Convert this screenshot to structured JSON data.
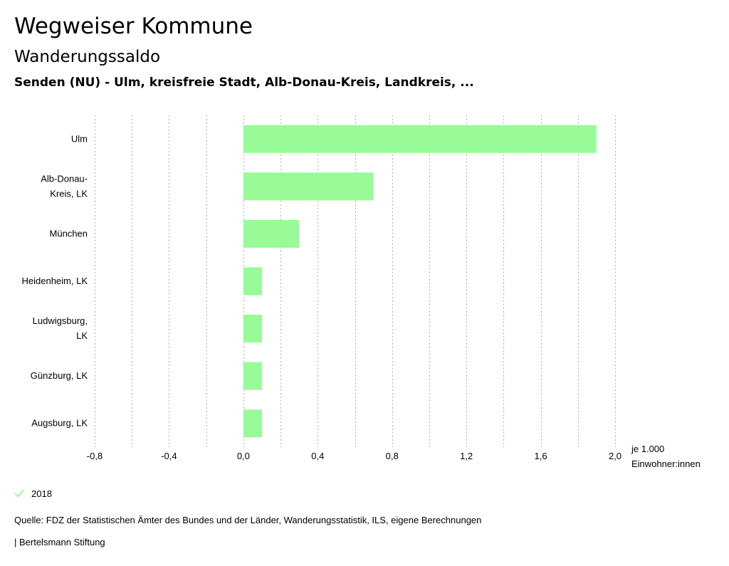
{
  "header": {
    "title": "Wegweiser Kommune",
    "subtitle": "Wanderungssaldo",
    "region": "Senden (NU) - Ulm, kreisfreie Stadt, Alb-Donau-Kreis, Landkreis, ..."
  },
  "chart_data": {
    "type": "bar",
    "orientation": "horizontal",
    "categories": [
      [
        "Ulm"
      ],
      [
        "Alb-Donau-",
        "Kreis, LK"
      ],
      [
        "München"
      ],
      [
        "Heidenheim, LK"
      ],
      [
        "Ludwigsburg,",
        "LK"
      ],
      [
        "Günzburg, LK"
      ],
      [
        "Augsburg, LK"
      ]
    ],
    "series": [
      {
        "name": "2018",
        "values": [
          1.9,
          0.7,
          0.3,
          0.1,
          0.1,
          0.1,
          0.1
        ]
      }
    ],
    "xlim": [
      -0.8,
      2.0
    ],
    "xticks": [
      -0.8,
      -0.4,
      0.0,
      0.4,
      0.8,
      1.2,
      1.6,
      2.0
    ],
    "xtick_labels": [
      "-0,8",
      "-0,4",
      "0,0",
      "0,4",
      "0,8",
      "1,2",
      "1,6",
      "2,0"
    ],
    "xlabel": [
      "je 1.000",
      "Einwohner:innen"
    ],
    "grid": "vertical dotted"
  },
  "legend": {
    "label": "2018",
    "icon": "check-icon"
  },
  "footer": {
    "source": "Quelle: FDZ der Statistischen Ämter des Bundes und der Länder, Wanderungsstatistik, ILS, eigene Berechnungen",
    "credit": "| Bertelsmann Stiftung"
  },
  "colors": {
    "bar": "#98fb98",
    "grid": "#b0b0b0",
    "text": "#000000",
    "check": "#98fb98"
  }
}
